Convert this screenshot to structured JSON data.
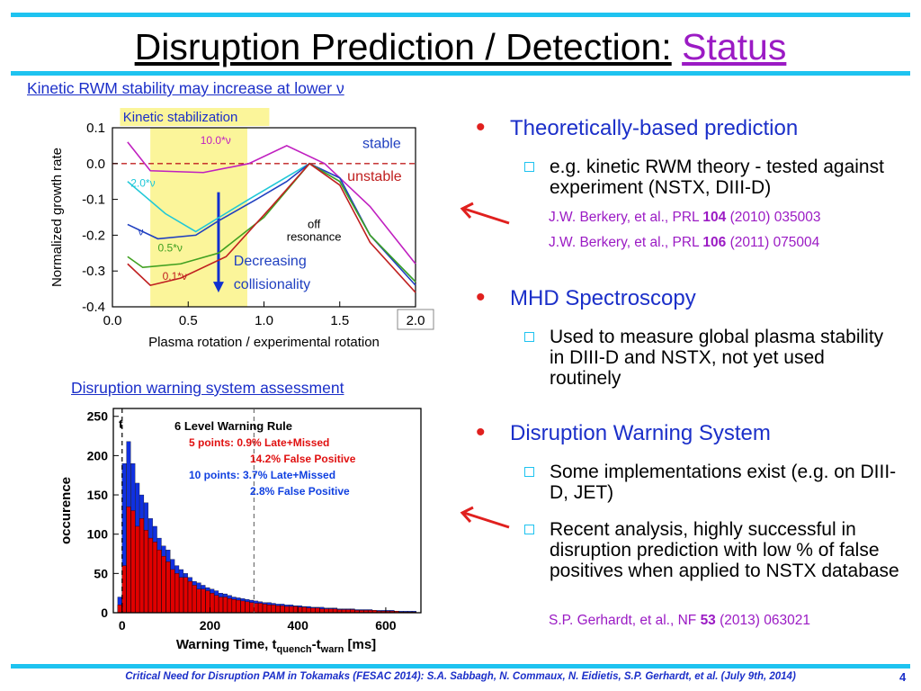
{
  "slide": {
    "title_main": "Disruption Prediction / Detection:",
    "title_status": "Status",
    "caption_left_top": "Kinetic RWM stability may increase at lower ν",
    "caption_left_bottom": "Disruption warning system assessment",
    "footer": "Critical Need for Disruption PAM in Tokamaks (FESAC 2014): S.A. Sabbagh, N. Commaux, N. Eidietis, S.P. Gerhardt, et al. (July 9th, 2014)",
    "page_number": "4",
    "accent_color": "#1ec3f0",
    "bullet_color": "#e0201e"
  },
  "bullets": [
    {
      "label": "Theoretically-based prediction",
      "sub": [
        {
          "text": "e.g. kinetic RWM theory - tested against experiment (NSTX, DIII-D)"
        }
      ],
      "refs": [
        {
          "pre": "J.W. Berkery, et al., PRL ",
          "vol": "104",
          "post": " (2010) 035003"
        },
        {
          "pre": "J.W. Berkery, et al., PRL ",
          "vol": "106",
          "post": " (2011) 075004"
        }
      ]
    },
    {
      "label": "MHD Spectroscopy",
      "sub": [
        {
          "text": "Used to measure global plasma stability in DIII-D and NSTX, not yet used routinely"
        }
      ]
    },
    {
      "label": "Disruption Warning System",
      "sub": [
        {
          "text": "Some implementations exist (e.g. on DIII-D, JET)"
        },
        {
          "text": "Recent analysis, highly successful in disruption prediction with low % of false positives when applied to NSTX database"
        }
      ],
      "refs": [
        {
          "pre": "S.P. Gerhardt, et al., NF ",
          "vol": "53",
          "post": " (2013) 063021"
        }
      ]
    }
  ],
  "chart_data": [
    {
      "type": "line",
      "title": "Kinetic RWM stability",
      "xlabel": "Plasma rotation / experimental rotation",
      "ylabel": "Normalized growth rate",
      "xlim": [
        0,
        2.0
      ],
      "ylim": [
        -0.4,
        0.1
      ],
      "xticks": [
        "0.0",
        "0.5",
        "1.0",
        "1.5",
        "2.0"
      ],
      "yticks": [
        "0.1",
        "0.0",
        "-0.1",
        "-0.2",
        "-0.3",
        "-0.4"
      ],
      "annotations": {
        "band": "Kinetic stabilization",
        "stable": "stable",
        "unstable": "unstable",
        "off_resonance": [
          "off",
          "resonance"
        ],
        "arrow_label": [
          "Decreasing",
          "collisionality"
        ]
      },
      "series": [
        {
          "name": "10.0*ν",
          "color": "#c020c0",
          "x": [
            0.1,
            0.25,
            0.6,
            0.9,
            1.15,
            1.4,
            1.7,
            2.0
          ],
          "y": [
            0.06,
            -0.02,
            -0.025,
            0.0,
            0.05,
            0.0,
            -0.12,
            -0.28
          ]
        },
        {
          "name": "2.0*ν",
          "color": "#20c8d8",
          "x": [
            0.1,
            0.35,
            0.55,
            0.9,
            1.1,
            1.3,
            1.5,
            1.7,
            2.0
          ],
          "y": [
            -0.05,
            -0.14,
            -0.19,
            -0.1,
            -0.05,
            0.0,
            -0.05,
            -0.2,
            -0.33
          ]
        },
        {
          "name": "ν",
          "color": "#2040c0",
          "x": [
            0.1,
            0.3,
            0.55,
            0.7,
            0.95,
            1.15,
            1.3,
            1.5,
            1.7,
            2.0
          ],
          "y": [
            -0.17,
            -0.21,
            -0.2,
            -0.16,
            -0.1,
            -0.05,
            0.0,
            -0.04,
            -0.2,
            -0.34
          ]
        },
        {
          "name": "0.5*ν",
          "color": "#40a020",
          "x": [
            0.1,
            0.2,
            0.45,
            0.7,
            1.0,
            1.3,
            1.5,
            1.7,
            2.0
          ],
          "y": [
            -0.26,
            -0.29,
            -0.28,
            -0.25,
            -0.15,
            0.0,
            -0.05,
            -0.2,
            -0.33
          ]
        },
        {
          "name": "0.1*ν",
          "color": "#c02020",
          "x": [
            0.1,
            0.25,
            0.45,
            0.75,
            1.05,
            1.3,
            1.5,
            1.7,
            2.0
          ],
          "y": [
            -0.28,
            -0.34,
            -0.32,
            -0.26,
            -0.12,
            0.0,
            -0.06,
            -0.22,
            -0.36
          ]
        }
      ]
    },
    {
      "type": "bar",
      "title": "6 Level Warning Rule",
      "xlabel_main": "Warning Time, t",
      "xlabel_sub1": "quench",
      "xlabel_mid": "-t",
      "xlabel_sub2": "warn",
      "xlabel_unit": " [ms]",
      "ylabel": "occurence",
      "xlim": [
        -20,
        680
      ],
      "ylim": [
        0,
        260
      ],
      "xticks": [
        "0",
        "200",
        "400",
        "600"
      ],
      "yticks": [
        "250",
        "200",
        "150",
        "100",
        "50",
        "0"
      ],
      "corner_text": "t",
      "legend": [
        {
          "text": "5 points: 0.9% Late+Missed",
          "color": "#e01010"
        },
        {
          "text": "14.2% False Positive",
          "color": "#e01010"
        },
        {
          "text": "10 points: 3.7% Late+Missed",
          "color": "#1040e0"
        },
        {
          "text": "2.8% False Positive",
          "color": "#1040e0"
        }
      ],
      "bin_width_ms": 10,
      "bin_start_ms": -10,
      "series": [
        {
          "name": "10 points",
          "color": "#1030e0",
          "values": [
            20,
            190,
            218,
            190,
            165,
            150,
            140,
            120,
            110,
            95,
            85,
            80,
            68,
            60,
            55,
            50,
            45,
            40,
            38,
            35,
            32,
            30,
            28,
            25,
            24,
            22,
            20,
            19,
            18,
            17,
            16,
            15,
            14,
            13,
            13,
            12,
            11,
            11,
            10,
            10,
            9,
            9,
            8,
            8,
            7,
            7,
            7,
            6,
            6,
            6,
            5,
            5,
            5,
            5,
            4,
            4,
            4,
            4,
            3,
            3,
            3,
            3,
            3,
            2,
            2,
            2,
            2,
            2
          ]
        },
        {
          "name": "5 points",
          "color": "#e00000",
          "values": [
            10,
            60,
            135,
            130,
            110,
            120,
            105,
            95,
            90,
            80,
            72,
            65,
            55,
            50,
            45,
            45,
            40,
            35,
            30,
            30,
            28,
            25,
            22,
            20,
            20,
            18,
            17,
            16,
            15,
            14,
            13,
            12,
            12,
            11,
            10,
            10,
            9,
            9,
            8,
            8,
            8,
            7,
            7,
            6,
            6,
            6,
            5,
            5,
            5,
            5,
            4,
            4,
            4,
            4,
            3,
            3,
            3,
            3,
            3,
            2,
            2,
            2,
            2,
            2,
            1,
            1,
            1,
            1
          ]
        }
      ]
    }
  ]
}
